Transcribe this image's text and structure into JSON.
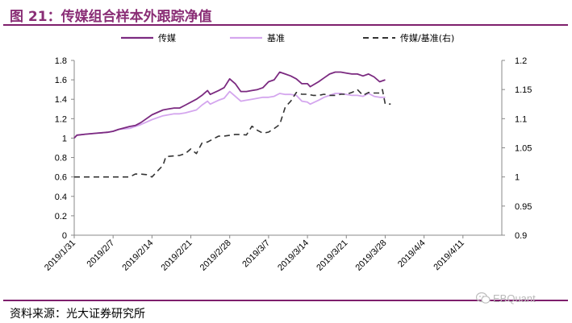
{
  "figure": {
    "title": "图 21：传媒组合样本外跟踪净值",
    "source": "资料来源：光大证券研究所",
    "watermark": "EBQuant"
  },
  "colors": {
    "portfolio": "#7b2a80",
    "benchmark": "#d4a6ee",
    "ratio": "#333333",
    "accent": "#7e1f6c"
  },
  "chart_data": {
    "type": "line",
    "title": "",
    "xlabel": "",
    "ylabel": "",
    "x_tick_labels": [
      "2019/1/31",
      "2019/2/7",
      "2019/2/14",
      "2019/2/21",
      "2019/2/28",
      "2019/3/7",
      "2019/3/14",
      "2019/3/21",
      "2019/3/28",
      "2019/4/4",
      "2019/4/11"
    ],
    "left_ticks": [
      "0",
      "0.2",
      "0.4",
      "0.6",
      "0.8",
      "1",
      "1.2",
      "1.4",
      "1.6",
      "1.8"
    ],
    "right_ticks": [
      "0.9",
      "0.95",
      "1",
      "1.05",
      "1.1",
      "1.15",
      "1.2"
    ],
    "ylim_left": [
      0,
      1.8
    ],
    "ylim_right": [
      0.9,
      1.2
    ],
    "legend_position": "top",
    "grid": false,
    "series": [
      {
        "name": "传媒",
        "axis": "left",
        "style": "solid",
        "points": [
          [
            0,
            1.0
          ],
          [
            0.5,
            1.03
          ],
          [
            2,
            1.04
          ],
          [
            4,
            1.05
          ],
          [
            6,
            1.06
          ],
          [
            7,
            1.07
          ],
          [
            8,
            1.09
          ],
          [
            10,
            1.12
          ],
          [
            11,
            1.13
          ],
          [
            12,
            1.16
          ],
          [
            14,
            1.24
          ],
          [
            16,
            1.29
          ],
          [
            17,
            1.3
          ],
          [
            18,
            1.31
          ],
          [
            19,
            1.31
          ],
          [
            20,
            1.34
          ],
          [
            22,
            1.4
          ],
          [
            23,
            1.44
          ],
          [
            24,
            1.49
          ],
          [
            24.5,
            1.45
          ],
          [
            26,
            1.49
          ],
          [
            27,
            1.52
          ],
          [
            28,
            1.61
          ],
          [
            29,
            1.56
          ],
          [
            30,
            1.48
          ],
          [
            31,
            1.48
          ],
          [
            32,
            1.49
          ],
          [
            33,
            1.5
          ],
          [
            34,
            1.52
          ],
          [
            35,
            1.58
          ],
          [
            36,
            1.6
          ],
          [
            37,
            1.68
          ],
          [
            38,
            1.66
          ],
          [
            39,
            1.64
          ],
          [
            40,
            1.61
          ],
          [
            41,
            1.56
          ],
          [
            42,
            1.56
          ],
          [
            42.5,
            1.53
          ],
          [
            44,
            1.58
          ],
          [
            45,
            1.62
          ],
          [
            46,
            1.66
          ],
          [
            47,
            1.68
          ],
          [
            48,
            1.68
          ],
          [
            49,
            1.67
          ],
          [
            50,
            1.66
          ],
          [
            51,
            1.66
          ],
          [
            52,
            1.64
          ],
          [
            53,
            1.66
          ],
          [
            54,
            1.63
          ],
          [
            55,
            1.58
          ],
          [
            56,
            1.6
          ]
        ]
      },
      {
        "name": "基准",
        "axis": "left",
        "style": "solid",
        "points": [
          [
            0,
            1.0
          ],
          [
            0.5,
            1.03
          ],
          [
            2,
            1.04
          ],
          [
            4,
            1.05
          ],
          [
            6,
            1.06
          ],
          [
            7,
            1.07
          ],
          [
            8,
            1.09
          ],
          [
            10,
            1.1
          ],
          [
            11,
            1.12
          ],
          [
            12,
            1.14
          ],
          [
            14,
            1.19
          ],
          [
            16,
            1.23
          ],
          [
            17,
            1.24
          ],
          [
            18,
            1.25
          ],
          [
            19,
            1.25
          ],
          [
            20,
            1.26
          ],
          [
            22,
            1.29
          ],
          [
            23,
            1.34
          ],
          [
            24,
            1.38
          ],
          [
            24.5,
            1.35
          ],
          [
            26,
            1.39
          ],
          [
            27,
            1.41
          ],
          [
            28,
            1.48
          ],
          [
            29,
            1.43
          ],
          [
            30,
            1.38
          ],
          [
            31,
            1.39
          ],
          [
            32,
            1.4
          ],
          [
            33,
            1.41
          ],
          [
            34,
            1.42
          ],
          [
            35,
            1.42
          ],
          [
            36,
            1.43
          ],
          [
            37,
            1.46
          ],
          [
            38,
            1.45
          ],
          [
            39,
            1.45
          ],
          [
            40,
            1.44
          ],
          [
            41,
            1.38
          ],
          [
            42,
            1.37
          ],
          [
            42.5,
            1.35
          ],
          [
            44,
            1.39
          ],
          [
            45,
            1.42
          ],
          [
            46,
            1.44
          ],
          [
            47,
            1.46
          ],
          [
            48,
            1.46
          ],
          [
            49,
            1.45
          ],
          [
            50,
            1.44
          ],
          [
            51,
            1.44
          ],
          [
            52,
            1.43
          ],
          [
            53,
            1.46
          ],
          [
            54,
            1.43
          ],
          [
            55,
            1.42
          ],
          [
            56,
            1.42
          ]
        ]
      },
      {
        "name": "传媒/基准(右)",
        "axis": "right",
        "style": "dashed",
        "points": [
          [
            0,
            1.0
          ],
          [
            4,
            1.0
          ],
          [
            8,
            1.0
          ],
          [
            10,
            1.0
          ],
          [
            11,
            1.005
          ],
          [
            12,
            1.005
          ],
          [
            13,
            1.004
          ],
          [
            14,
            1.0
          ],
          [
            15,
            1.01
          ],
          [
            16,
            1.02
          ],
          [
            16.5,
            1.035
          ],
          [
            19,
            1.037
          ],
          [
            20,
            1.04
          ],
          [
            21,
            1.048
          ],
          [
            22,
            1.04
          ],
          [
            23,
            1.058
          ],
          [
            24,
            1.06
          ],
          [
            26,
            1.07
          ],
          [
            27,
            1.07
          ],
          [
            29,
            1.073
          ],
          [
            30,
            1.073
          ],
          [
            31,
            1.072
          ],
          [
            32,
            1.087
          ],
          [
            33,
            1.08
          ],
          [
            34,
            1.075
          ],
          [
            35,
            1.077
          ],
          [
            36,
            1.083
          ],
          [
            37,
            1.09
          ],
          [
            38,
            1.12
          ],
          [
            39,
            1.13
          ],
          [
            40,
            1.145
          ],
          [
            41,
            1.142
          ],
          [
            42,
            1.142
          ],
          [
            43,
            1.14
          ],
          [
            44,
            1.14
          ],
          [
            45,
            1.142
          ],
          [
            46,
            1.14
          ],
          [
            47,
            1.14
          ],
          [
            48,
            1.142
          ],
          [
            49,
            1.142
          ],
          [
            50,
            1.145
          ],
          [
            51,
            1.15
          ],
          [
            52,
            1.14
          ],
          [
            53,
            1.145
          ],
          [
            54,
            1.144
          ],
          [
            55,
            1.144
          ],
          [
            55.5,
            1.15
          ],
          [
            56,
            1.125
          ],
          [
            57,
            1.125
          ]
        ]
      }
    ]
  }
}
